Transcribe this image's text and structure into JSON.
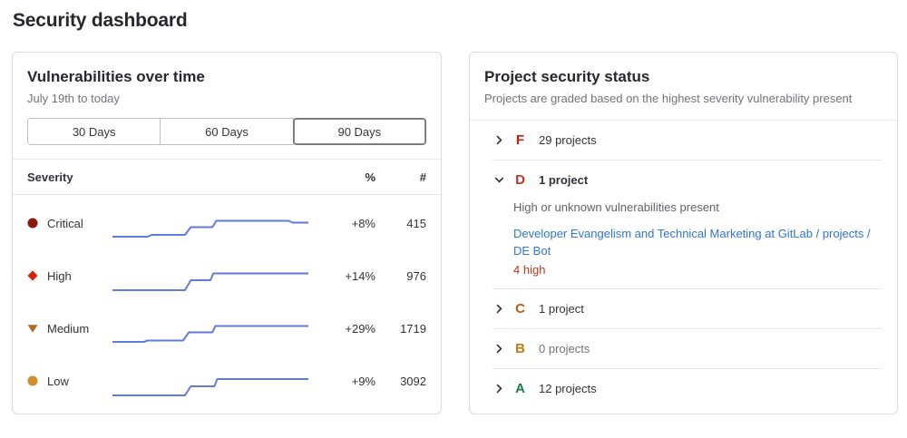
{
  "page": {
    "title": "Security dashboard"
  },
  "vulnerabilities_panel": {
    "title": "Vulnerabilities over time",
    "date_range": "July 19th to today",
    "range_options": [
      {
        "label": "30 Days",
        "selected": false
      },
      {
        "label": "60 Days",
        "selected": false
      },
      {
        "label": "90 Days",
        "selected": true
      }
    ],
    "table": {
      "headers": {
        "severity": "Severity",
        "percent": "%",
        "count": "#"
      },
      "sparkline_color": "#617ae2",
      "rows": [
        {
          "severity": "Critical",
          "color": "#8f170a",
          "percent_change": "+8%",
          "count": "415",
          "sparkline": [
            [
              0,
              23
            ],
            [
              18,
              23
            ],
            [
              20,
              21
            ],
            [
              37,
              21
            ],
            [
              40,
              12.5
            ],
            [
              51,
              12.5
            ],
            [
              53,
              5.5
            ],
            [
              90,
              5.5
            ],
            [
              92,
              7.5
            ],
            [
              100,
              7.5
            ]
          ]
        },
        {
          "severity": "High",
          "color": "#d3240e",
          "percent_change": "+14%",
          "count": "976",
          "sparkline": [
            [
              0,
              24
            ],
            [
              37,
              24
            ],
            [
              40,
              13
            ],
            [
              50,
              13
            ],
            [
              51.5,
              5.5
            ],
            [
              100,
              5.5
            ]
          ]
        },
        {
          "severity": "Medium",
          "color": "#b5681c",
          "percent_change": "+29%",
          "count": "1719",
          "sparkline": [
            [
              0,
              23
            ],
            [
              16,
              23
            ],
            [
              18,
              21.5
            ],
            [
              36,
              21.5
            ],
            [
              39,
              12.5
            ],
            [
              51,
              12.5
            ],
            [
              52.5,
              5.5
            ],
            [
              100,
              5.5
            ]
          ]
        },
        {
          "severity": "Low",
          "color": "#d18d2c",
          "percent_change": "+9%",
          "count": "3092",
          "sparkline": [
            [
              0,
              24
            ],
            [
              37,
              24
            ],
            [
              40,
              14
            ],
            [
              52,
              14
            ],
            [
              53.5,
              6
            ],
            [
              100,
              6
            ]
          ]
        }
      ]
    }
  },
  "project_status_panel": {
    "title": "Project security status",
    "subtitle": "Projects are graded based on the highest severity vulnerability present",
    "grades": [
      {
        "letter": "F",
        "color": "#c91c00",
        "count_label": "29 projects",
        "expanded": false
      },
      {
        "letter": "D",
        "color": "#c0351d",
        "count_label": "1 project",
        "expanded": true,
        "description": "High or unknown vulnerabilities present",
        "project_link": "Developer Evangelism and Technical Marketing at GitLab / projects / DE Bot",
        "link_color": "#2f76cf",
        "severity_summary": "4 high",
        "severity_summary_color": "#c0351d"
      },
      {
        "letter": "C",
        "color": "#c05b16",
        "count_label": "1 project",
        "expanded": false
      },
      {
        "letter": "B",
        "color": "#bf7d10",
        "count_label": "0 projects",
        "expanded": false,
        "muted": true
      },
      {
        "letter": "A",
        "color": "#1c7e45",
        "count_label": "12 projects",
        "expanded": false
      }
    ]
  }
}
